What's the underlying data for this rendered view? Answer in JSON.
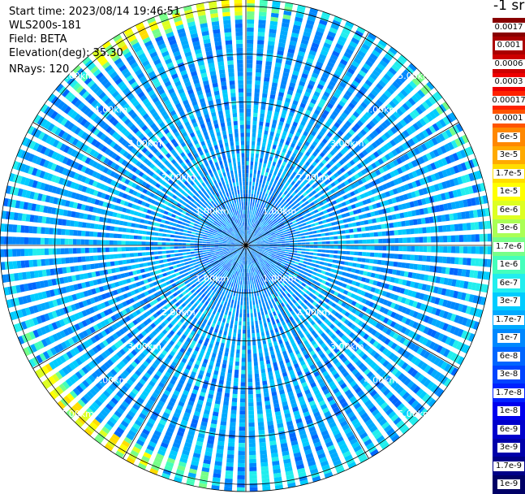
{
  "info": {
    "start_time": "Start time: 2023/08/14 19:46:51",
    "instrument": "WLS200s-181",
    "field": "Field: BETA",
    "elevation": "Elevation(deg): 35.30",
    "nrays": "NRays: 120"
  },
  "colorbar": {
    "title": "-1 sr",
    "labels": [
      "0.0017",
      "0.001",
      "0.0006",
      "0.0003",
      "0.00017",
      "0.0001",
      "6e-5",
      "3e-5",
      "1.7e-5",
      "1e-5",
      "6e-6",
      "3e-6",
      "1.7e-6",
      "1e-6",
      "6e-7",
      "3e-7",
      "1.7e-7",
      "1e-7",
      "6e-8",
      "3e-8",
      "1.7e-8",
      "1e-8",
      "6e-9",
      "3e-9",
      "1.7e-9",
      "1e-9"
    ],
    "colors": [
      "#880000",
      "#aa0000",
      "#cc0000",
      "#ee0000",
      "#ff2200",
      "#ff5500",
      "#ff8800",
      "#ffaa00",
      "#ffdd00",
      "#ffff00",
      "#ddff22",
      "#aaff55",
      "#77ff88",
      "#44ffbb",
      "#22eeee",
      "#00ccff",
      "#00aaff",
      "#0088ff",
      "#0066ff",
      "#0044ff",
      "#0022ff",
      "#0000ee",
      "#0000cc",
      "#0000aa",
      "#000088",
      "#000066"
    ]
  },
  "chart_data": {
    "type": "heatmap",
    "projection": "polar (PPI scan)",
    "field": "BETA",
    "unit": "-1 sr",
    "elevation_deg": 35.3,
    "n_rays": 120,
    "range_ring_labels": [
      "1.00km",
      "2.00km",
      "3.00km",
      "4.00km",
      "5.00km"
    ],
    "range_rings_km": [
      1,
      2,
      3,
      4,
      5
    ],
    "max_range_km": 5.15,
    "radial_sector_lines_deg": [
      0,
      30,
      60,
      90,
      120,
      150,
      180,
      210,
      240,
      270,
      300,
      330
    ],
    "dominant_value_range": [
      "1e-7",
      "3e-7"
    ],
    "notable_features": [
      {
        "region": "outer edge, upper-left (azimuth ~330-355 deg, ~5 km)",
        "values": [
          "6e-6",
          "1e-5"
        ]
      },
      {
        "region": "outer edge, lower-left (azimuth ~205-235 deg, ~5 km)",
        "values": [
          "3e-6",
          "1e-5"
        ]
      },
      {
        "region": "inside ~1 km",
        "values": [
          "3e-8",
          "1e-7"
        ]
      }
    ]
  }
}
